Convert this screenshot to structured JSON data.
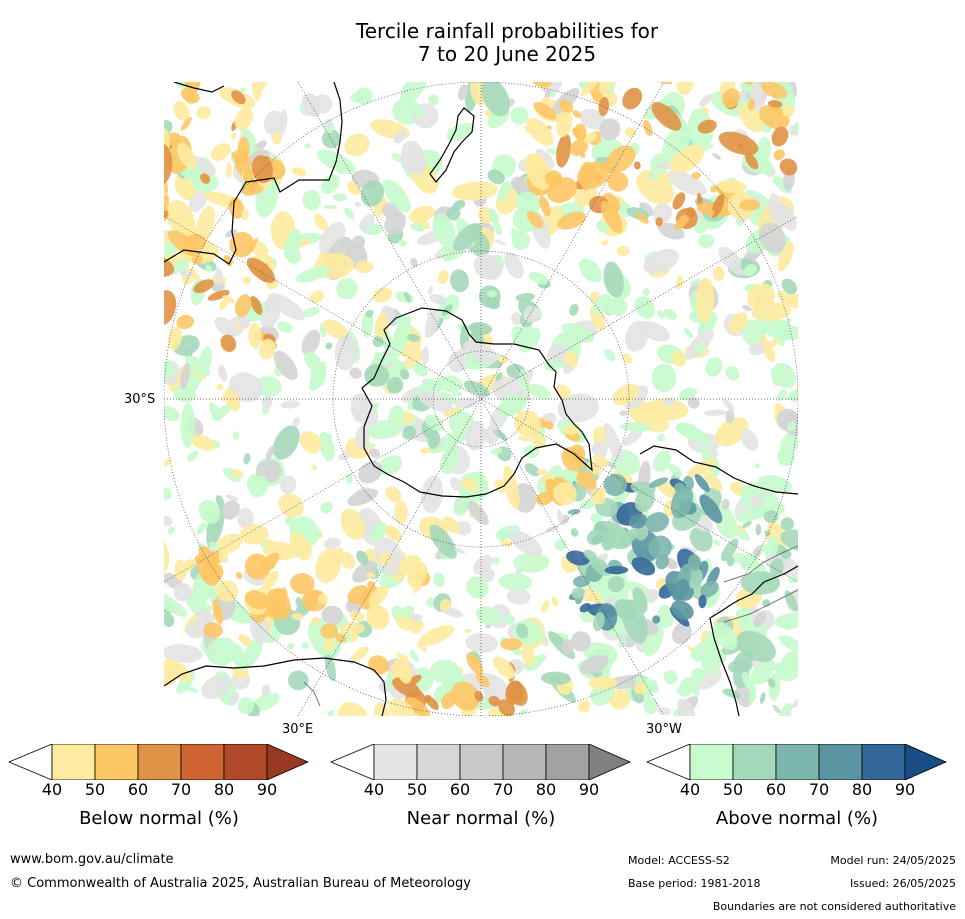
{
  "title": {
    "line1": "Tercile rainfall probabilities for",
    "line2": "7 to 20 June 2025"
  },
  "map": {
    "projection": "south polar stereographic",
    "labels": {
      "lat_30s": "30°S",
      "lon_30e": "30°E",
      "lon_30w": "30°W"
    }
  },
  "colorbars": [
    {
      "id": "below",
      "title": "Below normal (%)",
      "ticks": [
        "40",
        "50",
        "60",
        "70",
        "80",
        "90"
      ],
      "colors": [
        "#fdeba0",
        "#fdc765",
        "#e09245",
        "#cd6432",
        "#b04a28"
      ],
      "end_color": "#983a22"
    },
    {
      "id": "near",
      "title": "Near normal (%)",
      "ticks": [
        "40",
        "50",
        "60",
        "70",
        "80",
        "90"
      ],
      "colors": [
        "#e5e5e5",
        "#d7d7d7",
        "#c8c8c8",
        "#b7b7b7",
        "#a2a2a2"
      ],
      "end_color": "#808080"
    },
    {
      "id": "above",
      "title": "Above normal (%)",
      "ticks": [
        "40",
        "50",
        "60",
        "70",
        "80",
        "90"
      ],
      "colors": [
        "#c7fbcd",
        "#a4d8ba",
        "#7cb5ac",
        "#5b95a2",
        "#35689a"
      ],
      "end_color": "#184e85"
    }
  ],
  "footer": {
    "website": "www.bom.gov.au/climate",
    "copyright": "© Commonwealth of Australia 2025, Australian Bureau of Meteorology",
    "model": "Model: ACCESS-S2",
    "model_run": "Model run: 24/05/2025",
    "base_period": "Base period: 1981-2018",
    "issued": "Issued: 26/05/2025",
    "disclaimer": "Boundaries are not considered authoritative"
  }
}
